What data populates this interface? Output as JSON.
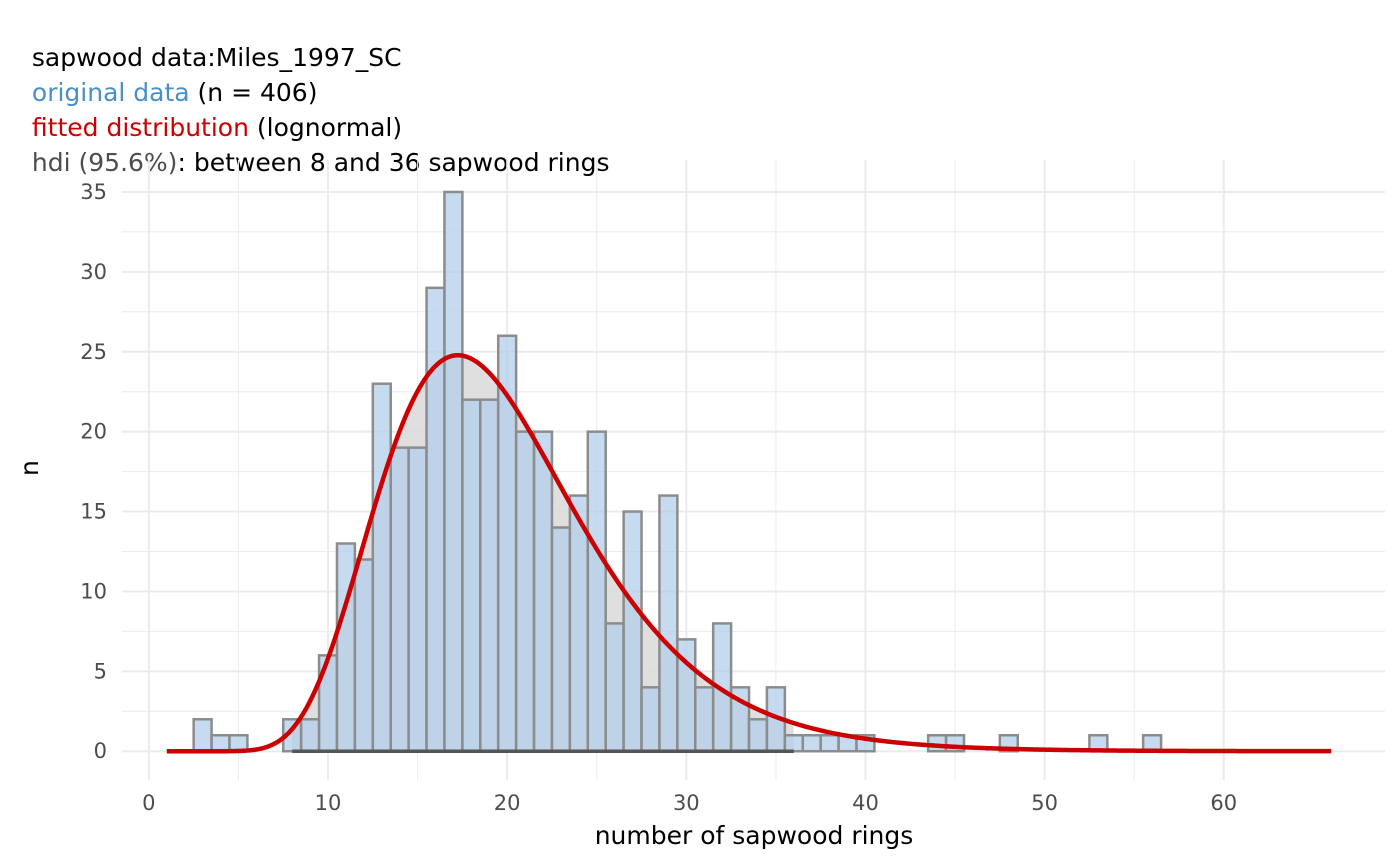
{
  "titles": {
    "line1": {
      "label": "sapwood data:",
      "value": "Miles_1997_SC"
    },
    "line2": {
      "label": "original data",
      "value": " (n = 406)"
    },
    "line3": {
      "label": "fitted distribution",
      "value": " (lognormal)"
    },
    "line4": {
      "label": "hdi (95.6%)",
      "value": ": between 8 and 36 sapwood rings"
    }
  },
  "colors": {
    "bar_fill": "#B3CFEA",
    "bar_stroke": "#8C8C8C",
    "density_fill": "#DCDCDC",
    "curve": "#CC0000",
    "hdi_line": "#555555",
    "grid": "#EBEBEB",
    "tick_text": "#4D4D4D"
  },
  "chart_data": {
    "type": "bar",
    "xlabel": "number of sapwood rings",
    "ylabel": "n",
    "xlim": [
      -1.5,
      69
    ],
    "ylim": [
      -1.8,
      37
    ],
    "x_ticks": [
      0,
      10,
      20,
      30,
      40,
      50,
      60
    ],
    "y_ticks": [
      0,
      5,
      10,
      15,
      20,
      25,
      30,
      35
    ],
    "grid": true,
    "bin_width": 1,
    "histogram": [
      {
        "x": 3,
        "n": 2
      },
      {
        "x": 4,
        "n": 1
      },
      {
        "x": 5,
        "n": 1
      },
      {
        "x": 8,
        "n": 2
      },
      {
        "x": 9,
        "n": 2
      },
      {
        "x": 10,
        "n": 6
      },
      {
        "x": 11,
        "n": 13
      },
      {
        "x": 12,
        "n": 12
      },
      {
        "x": 13,
        "n": 23
      },
      {
        "x": 14,
        "n": 19
      },
      {
        "x": 15,
        "n": 19
      },
      {
        "x": 16,
        "n": 29
      },
      {
        "x": 17,
        "n": 35
      },
      {
        "x": 18,
        "n": 22
      },
      {
        "x": 19,
        "n": 22
      },
      {
        "x": 20,
        "n": 26
      },
      {
        "x": 21,
        "n": 20
      },
      {
        "x": 22,
        "n": 20
      },
      {
        "x": 23,
        "n": 14
      },
      {
        "x": 24,
        "n": 16
      },
      {
        "x": 25,
        "n": 20
      },
      {
        "x": 26,
        "n": 8
      },
      {
        "x": 27,
        "n": 15
      },
      {
        "x": 28,
        "n": 4
      },
      {
        "x": 29,
        "n": 16
      },
      {
        "x": 30,
        "n": 7
      },
      {
        "x": 31,
        "n": 4
      },
      {
        "x": 32,
        "n": 8
      },
      {
        "x": 33,
        "n": 4
      },
      {
        "x": 34,
        "n": 2
      },
      {
        "x": 35,
        "n": 4
      },
      {
        "x": 36,
        "n": 1
      },
      {
        "x": 37,
        "n": 1
      },
      {
        "x": 38,
        "n": 1
      },
      {
        "x": 39,
        "n": 1
      },
      {
        "x": 40,
        "n": 1
      },
      {
        "x": 44,
        "n": 1
      },
      {
        "x": 45,
        "n": 1
      },
      {
        "x": 48,
        "n": 1
      },
      {
        "x": 53,
        "n": 1
      },
      {
        "x": 56,
        "n": 1
      }
    ],
    "fitted_curve": {
      "distribution": "lognormal",
      "meanlog": 2.95,
      "sdlog": 0.32,
      "peak_x": 16.8,
      "peak_n": 24.7,
      "x_from": 1,
      "x_to": 66
    },
    "hdi": {
      "level": "95.6%",
      "lower": 8,
      "upper": 36
    }
  }
}
